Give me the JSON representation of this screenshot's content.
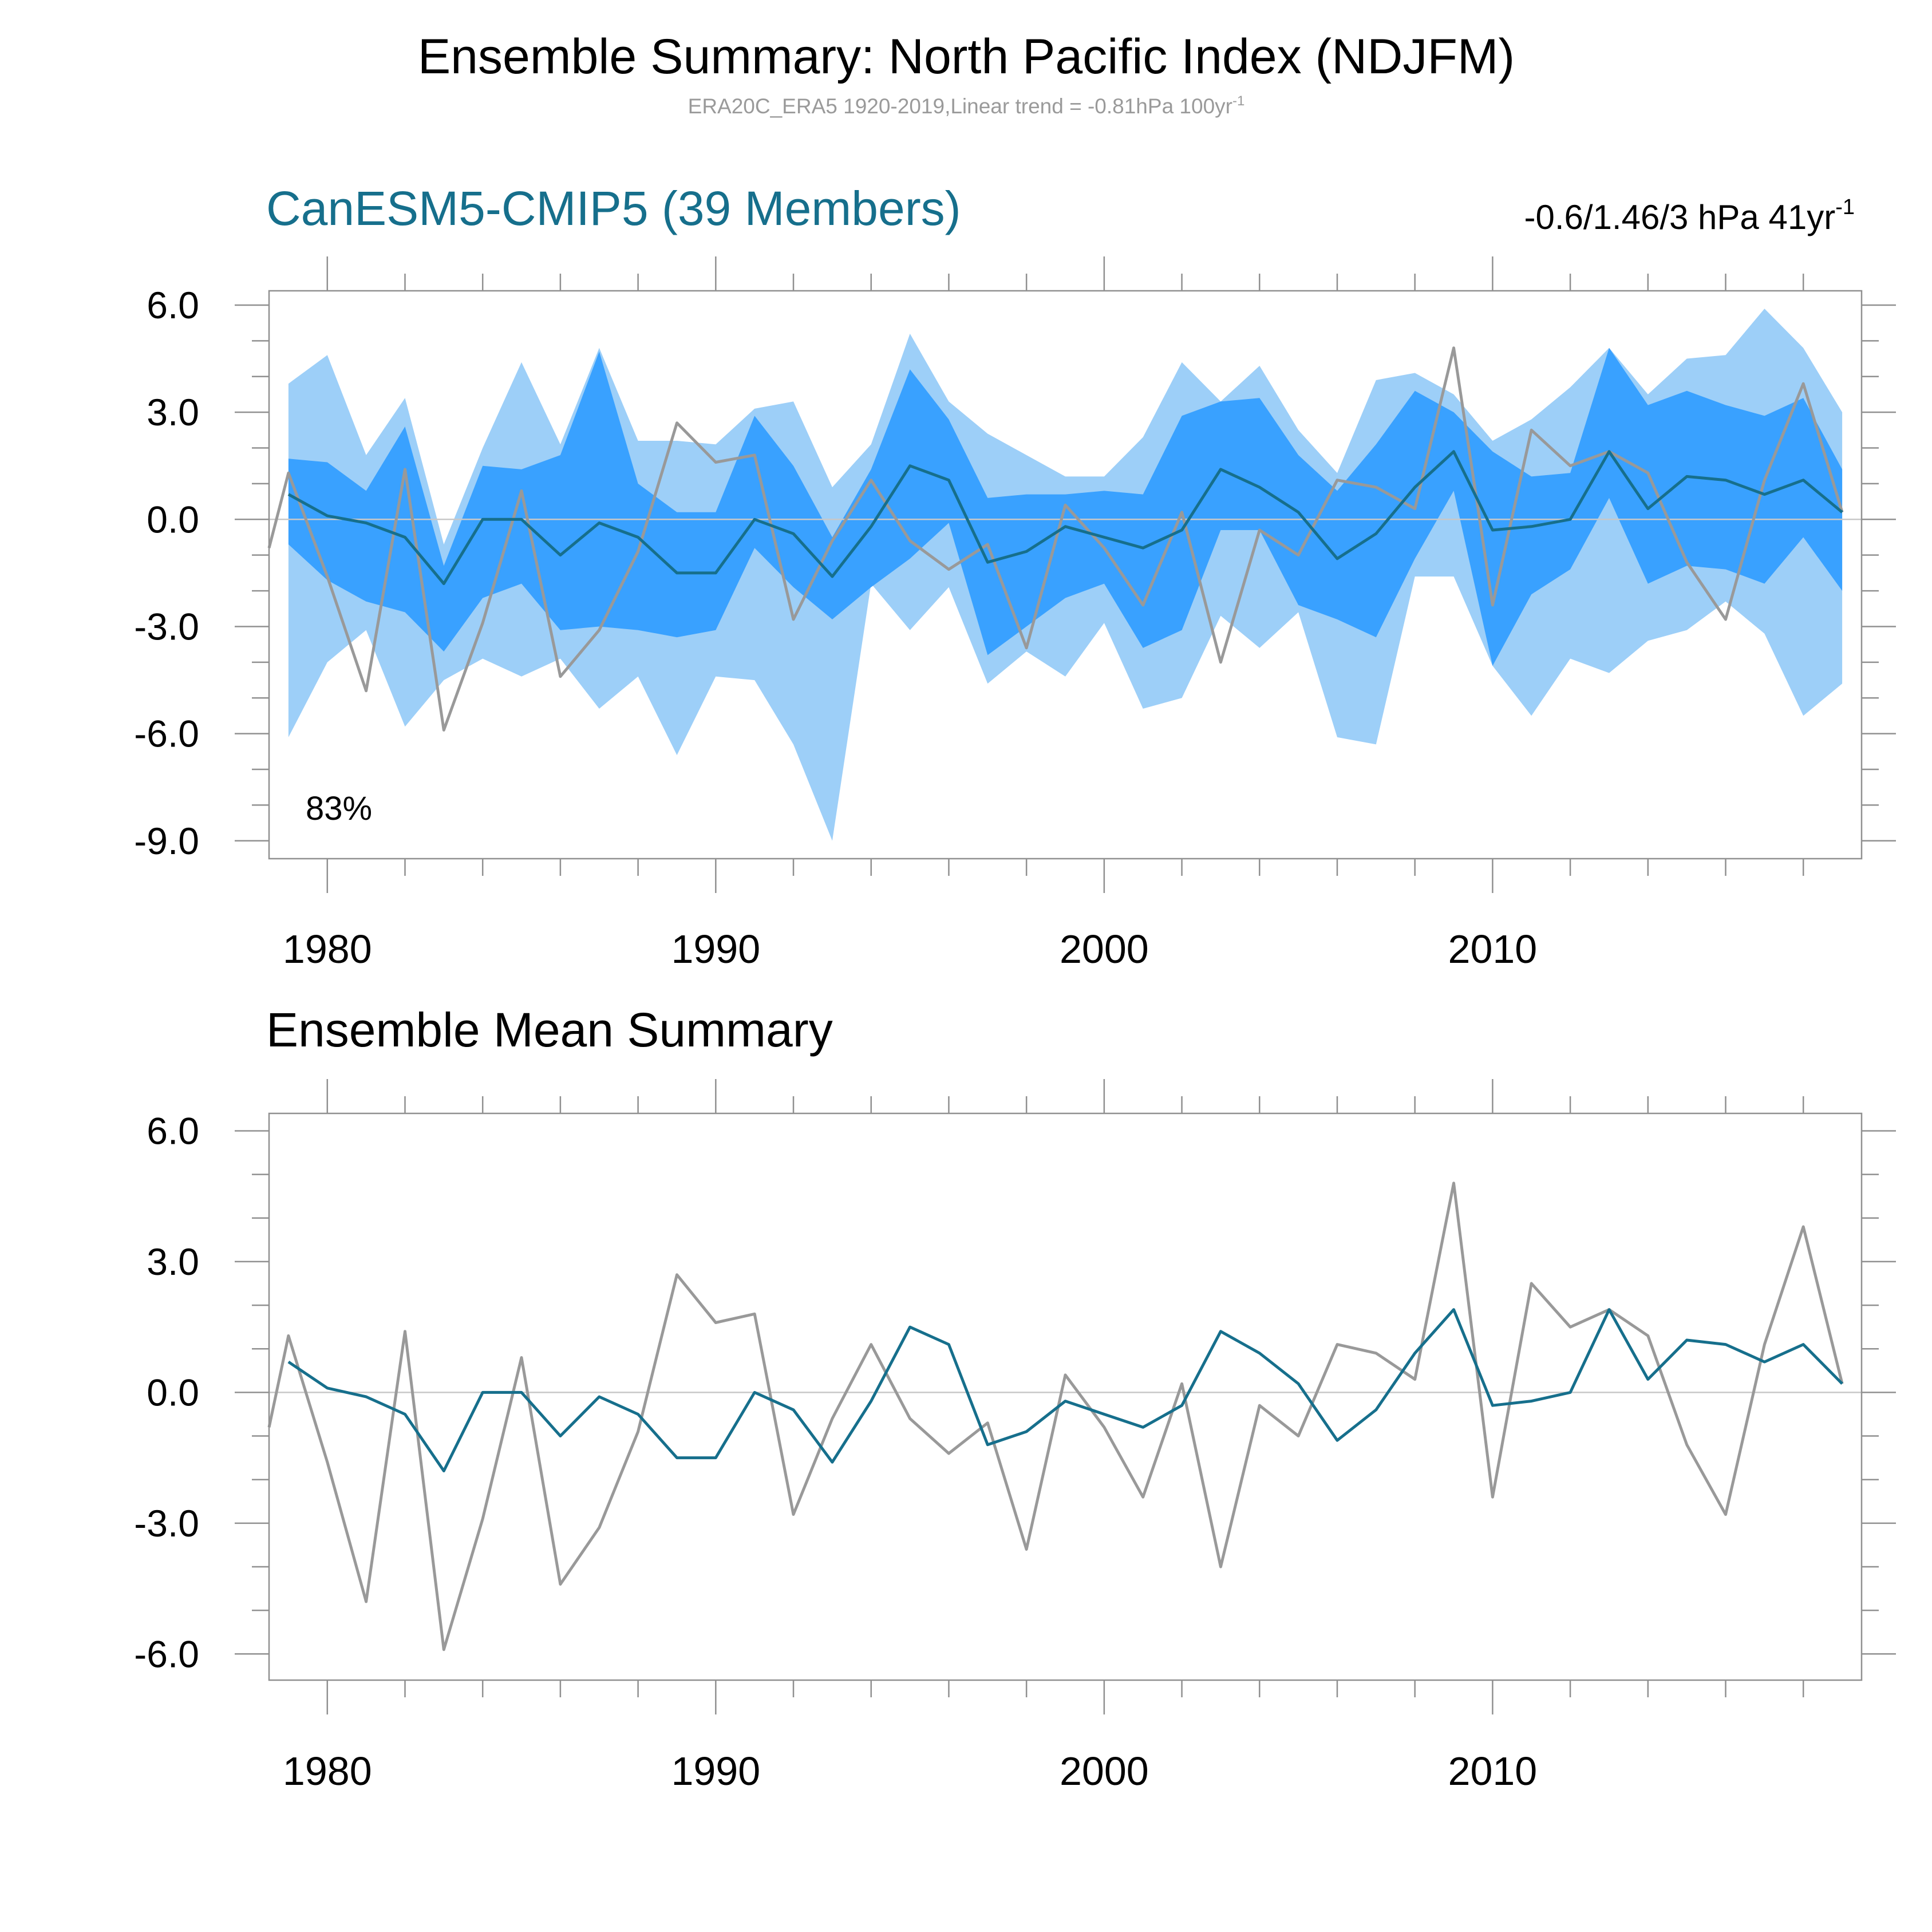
{
  "header": {
    "title": "Ensemble Summary: North Pacific Index (NDJFM)",
    "subtitle_main": "ERA20C_ERA5 1920-2019,Linear trend = -0.81hPa 100yr",
    "subtitle_sup": "-1"
  },
  "colors": {
    "band_outer": "#9dcff8",
    "band_inner": "#39a1ff",
    "ensemble_mean": "#166f8c",
    "observed": "#999999",
    "panel1_title": "#166f8c"
  },
  "chart_data": [
    {
      "type": "area",
      "title": "CanESM5-CMIP5 (39 Members)",
      "right_title_main": "-0.6/1.46/3 hPa 41yr",
      "right_title_sup": "-1",
      "annotation": "83%",
      "xlim": [
        1978.5,
        2019.5
      ],
      "ylim": [
        -9.5,
        6.4
      ],
      "yticks": [
        6,
        3,
        0,
        -3,
        -6,
        -9
      ],
      "ytick_labels": [
        "6.0",
        "3.0",
        "0.0",
        "-3.0",
        "-6.0",
        "-9.0"
      ],
      "xticks": [
        1980,
        1990,
        2000,
        2010
      ],
      "xtick_labels": [
        "1980",
        "1990",
        "2000",
        "2010"
      ],
      "x": [
        1979,
        1980,
        1981,
        1982,
        1983,
        1984,
        1985,
        1986,
        1987,
        1988,
        1989,
        1990,
        1991,
        1992,
        1993,
        1994,
        1995,
        1996,
        1997,
        1998,
        1999,
        2000,
        2001,
        2002,
        2003,
        2004,
        2005,
        2006,
        2007,
        2008,
        2009,
        2010,
        2011,
        2012,
        2013,
        2014,
        2015,
        2016,
        2017,
        2018,
        2019
      ],
      "bands": {
        "outer_max": [
          3.8,
          4.6,
          1.8,
          3.4,
          -0.7,
          2.0,
          4.4,
          2.1,
          4.8,
          2.2,
          2.2,
          2.1,
          3.1,
          3.3,
          0.9,
          2.1,
          5.2,
          3.3,
          2.4,
          1.8,
          1.2,
          1.2,
          2.3,
          4.4,
          3.3,
          4.3,
          2.5,
          1.3,
          3.9,
          4.1,
          3.5,
          2.2,
          2.8,
          3.7,
          4.8,
          3.5,
          4.5,
          4.6,
          5.9,
          4.8,
          3.0
        ],
        "inner_max": [
          1.7,
          1.6,
          0.8,
          2.6,
          -1.3,
          1.5,
          1.4,
          1.8,
          4.7,
          1.0,
          0.2,
          0.2,
          2.9,
          1.5,
          -0.5,
          1.4,
          4.2,
          2.8,
          0.6,
          0.7,
          0.7,
          0.8,
          0.7,
          2.9,
          3.3,
          3.4,
          1.8,
          0.8,
          2.1,
          3.6,
          3.0,
          1.9,
          1.2,
          1.3,
          4.8,
          3.2,
          3.6,
          3.2,
          2.9,
          3.4,
          1.4
        ],
        "inner_min": [
          -0.7,
          -1.7,
          -2.3,
          -2.6,
          -3.7,
          -2.2,
          -1.8,
          -3.1,
          -3.0,
          -3.1,
          -3.3,
          -3.1,
          -0.8,
          -1.9,
          -2.8,
          -1.9,
          -1.1,
          -0.1,
          -3.8,
          -3.0,
          -2.2,
          -1.8,
          -3.6,
          -3.1,
          -0.3,
          -0.3,
          -2.4,
          -2.8,
          -3.3,
          -1.1,
          0.8,
          -4.1,
          -2.1,
          -1.4,
          0.6,
          -1.8,
          -1.3,
          -1.4,
          -1.8,
          -0.5,
          -2.0
        ],
        "outer_min": [
          -6.1,
          -4.0,
          -3.1,
          -5.8,
          -4.5,
          -3.9,
          -4.4,
          -3.9,
          -5.3,
          -4.4,
          -6.6,
          -4.4,
          -4.5,
          -6.3,
          -9.0,
          -1.8,
          -3.1,
          -1.9,
          -4.6,
          -3.7,
          -4.4,
          -2.9,
          -5.3,
          -5.0,
          -2.7,
          -3.6,
          -2.6,
          -6.1,
          -6.3,
          -1.6,
          -1.6,
          -4.1,
          -5.5,
          -3.9,
          -4.3,
          -3.4,
          -3.1,
          -2.3,
          -3.2,
          -5.5,
          -4.6
        ]
      },
      "series": [
        {
          "name": "ensemble_mean",
          "values": [
            0.7,
            0.1,
            -0.1,
            -0.5,
            -1.8,
            0.0,
            0.0,
            -1.0,
            -0.1,
            -0.5,
            -1.5,
            -1.5,
            0.0,
            -0.4,
            -1.6,
            -0.2,
            1.5,
            1.1,
            -1.2,
            -0.9,
            -0.2,
            -0.5,
            -0.8,
            -0.3,
            1.4,
            0.9,
            0.2,
            -1.1,
            -0.4,
            0.9,
            1.9,
            -0.3,
            -0.2,
            0.0,
            1.9,
            0.3,
            1.2,
            1.1,
            0.7,
            1.1,
            0.2
          ]
        }
      ],
      "observed": {
        "name": "ERA20C_ERA5",
        "x": [
          1978.5,
          1979,
          1980,
          1981,
          1982,
          1983,
          1984,
          1985,
          1986,
          1987,
          1988,
          1989,
          1990,
          1991,
          1992,
          1993,
          1994,
          1995,
          1996,
          1997,
          1998,
          1999,
          2000,
          2001,
          2002,
          2003,
          2004,
          2005,
          2006,
          2007,
          2008,
          2009,
          2010,
          2011,
          2012,
          2013,
          2014,
          2015,
          2016,
          2017,
          2018,
          2019
        ],
        "values": [
          -0.8,
          1.3,
          -1.6,
          -4.8,
          1.4,
          -5.9,
          -2.9,
          0.8,
          -4.4,
          -3.1,
          -0.9,
          2.7,
          1.6,
          1.8,
          -2.8,
          -0.6,
          1.1,
          -0.6,
          -1.4,
          -0.7,
          -3.6,
          0.4,
          -0.8,
          -2.4,
          0.2,
          -4.0,
          -0.3,
          -1.0,
          1.1,
          0.9,
          0.3,
          4.8,
          -2.4,
          2.5,
          1.5,
          1.9,
          1.3,
          -1.2,
          -2.8,
          1.1,
          3.8,
          0.2
        ]
      }
    },
    {
      "type": "line",
      "title": "Ensemble Mean Summary",
      "xlim": [
        1978.5,
        2019.5
      ],
      "ylim": [
        -6.6,
        6.4
      ],
      "yticks": [
        6,
        3,
        0,
        -3,
        -6
      ],
      "ytick_labels": [
        "6.0",
        "3.0",
        "0.0",
        "-3.0",
        "-6.0"
      ],
      "xticks": [
        1980,
        1990,
        2000,
        2010
      ],
      "xtick_labels": [
        "1980",
        "1990",
        "2000",
        "2010"
      ],
      "x": [
        1979,
        1980,
        1981,
        1982,
        1983,
        1984,
        1985,
        1986,
        1987,
        1988,
        1989,
        1990,
        1991,
        1992,
        1993,
        1994,
        1995,
        1996,
        1997,
        1998,
        1999,
        2000,
        2001,
        2002,
        2003,
        2004,
        2005,
        2006,
        2007,
        2008,
        2009,
        2010,
        2011,
        2012,
        2013,
        2014,
        2015,
        2016,
        2017,
        2018,
        2019
      ],
      "series": [
        {
          "name": "ensemble_mean",
          "values": [
            0.7,
            0.1,
            -0.1,
            -0.5,
            -1.8,
            0.0,
            0.0,
            -1.0,
            -0.1,
            -0.5,
            -1.5,
            -1.5,
            0.0,
            -0.4,
            -1.6,
            -0.2,
            1.5,
            1.1,
            -1.2,
            -0.9,
            -0.2,
            -0.5,
            -0.8,
            -0.3,
            1.4,
            0.9,
            0.2,
            -1.1,
            -0.4,
            0.9,
            1.9,
            -0.3,
            -0.2,
            0.0,
            1.9,
            0.3,
            1.2,
            1.1,
            0.7,
            1.1,
            0.2
          ]
        }
      ],
      "observed": {
        "name": "ERA20C_ERA5",
        "x": [
          1978.5,
          1979,
          1980,
          1981,
          1982,
          1983,
          1984,
          1985,
          1986,
          1987,
          1988,
          1989,
          1990,
          1991,
          1992,
          1993,
          1994,
          1995,
          1996,
          1997,
          1998,
          1999,
          2000,
          2001,
          2002,
          2003,
          2004,
          2005,
          2006,
          2007,
          2008,
          2009,
          2010,
          2011,
          2012,
          2013,
          2014,
          2015,
          2016,
          2017,
          2018,
          2019
        ],
        "values": [
          -0.8,
          1.3,
          -1.6,
          -4.8,
          1.4,
          -5.9,
          -2.9,
          0.8,
          -4.4,
          -3.1,
          -0.9,
          2.7,
          1.6,
          1.8,
          -2.8,
          -0.6,
          1.1,
          -0.6,
          -1.4,
          -0.7,
          -3.6,
          0.4,
          -0.8,
          -2.4,
          0.2,
          -4.0,
          -0.3,
          -1.0,
          1.1,
          0.9,
          0.3,
          4.8,
          -2.4,
          2.5,
          1.5,
          1.9,
          1.3,
          -1.2,
          -2.8,
          1.1,
          3.8,
          0.2
        ]
      }
    }
  ]
}
